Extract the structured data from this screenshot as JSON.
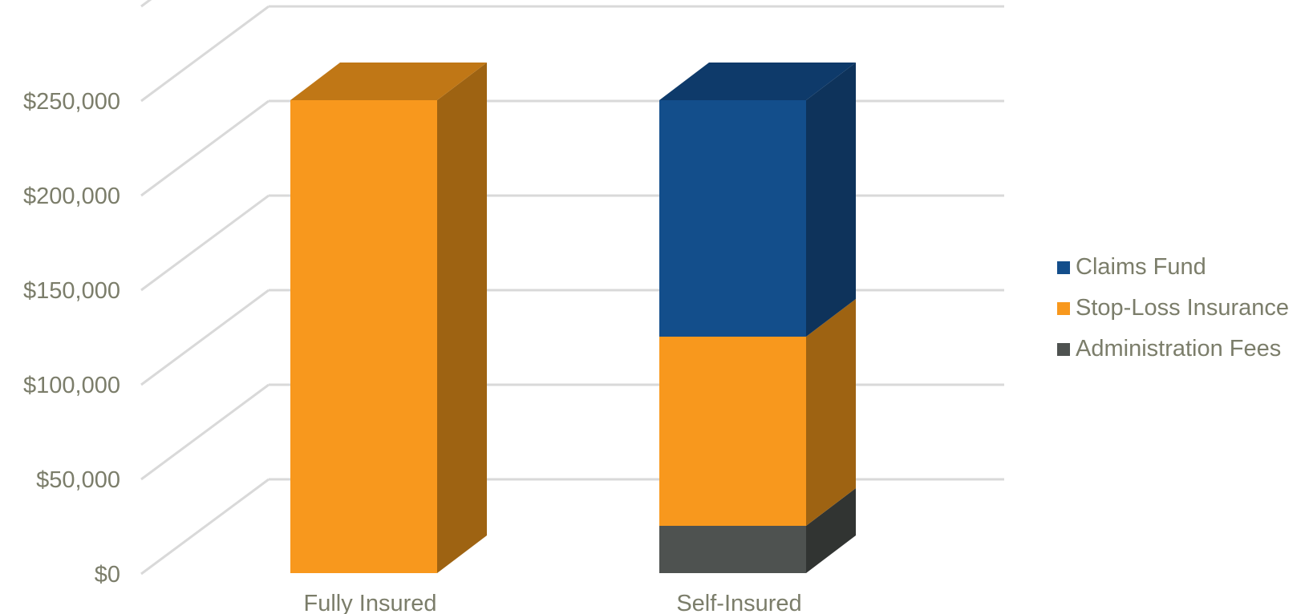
{
  "chart_data": {
    "type": "bar",
    "stacked": true,
    "three_d": true,
    "categories": [
      "Fully Insured",
      "Self-Insured"
    ],
    "series": [
      {
        "name": "Administration Fees",
        "values": [
          0,
          25000
        ],
        "color": "#4e5250",
        "side_color": "#313432"
      },
      {
        "name": "Stop-Loss Insurance",
        "values": [
          250000,
          100000
        ],
        "color": "#f8981d",
        "side_color": "#9e6312",
        "top_color": "#c07716"
      },
      {
        "name": "Claims Fund",
        "values": [
          0,
          125000
        ],
        "color": "#134e8b",
        "side_color": "#0e335b",
        "top_color": "#0e3a6a"
      }
    ],
    "y_ticks": [
      "$0",
      "$50,000",
      "$100,000",
      "$150,000",
      "$200,000",
      "$250,000"
    ],
    "ylim": [
      0,
      300000
    ],
    "grid": true,
    "legend_position": "right",
    "legend": [
      "Claims Fund",
      "Stop-Loss Insurance",
      "Administration Fees"
    ]
  }
}
